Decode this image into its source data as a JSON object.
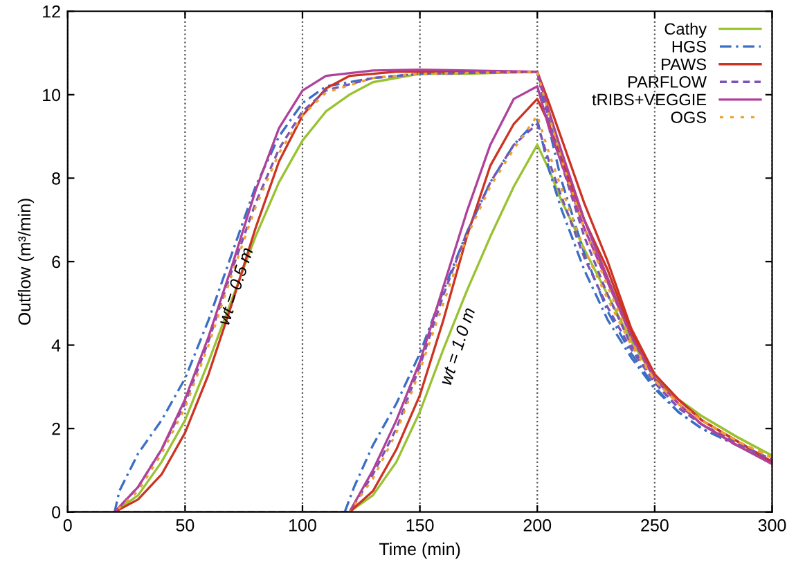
{
  "chart_data": {
    "type": "line",
    "xlabel": "Time (min)",
    "ylabel": "Outflow (m³/min)",
    "xlim": [
      0,
      300
    ],
    "ylim": [
      0,
      12
    ],
    "xticks": [
      0,
      50,
      100,
      150,
      200,
      250,
      300
    ],
    "yticks": [
      0,
      2,
      4,
      6,
      8,
      10,
      12
    ],
    "grid": "x",
    "legend": "top right",
    "marker": "none",
    "annotations": [
      "wt = 0.5 m",
      "wt = 1.0 m"
    ],
    "series": [
      {
        "name": "Cathy",
        "color": "#99c232",
        "line_style": "solid",
        "x": [
          0,
          20,
          30,
          40,
          50,
          60,
          70,
          80,
          90,
          100,
          110,
          120,
          130,
          150,
          170,
          200,
          205,
          210,
          220,
          230,
          240,
          250,
          260,
          270,
          285,
          300
        ],
        "values": [
          0,
          0,
          0.4,
          1.2,
          2.2,
          3.6,
          5.1,
          6.6,
          7.9,
          8.9,
          9.6,
          10.0,
          10.3,
          10.5,
          10.5,
          10.55,
          9.6,
          8.6,
          7.0,
          5.6,
          4.3,
          3.2,
          2.7,
          2.3,
          1.8,
          1.35
        ]
      },
      {
        "color": "#99c232",
        "line_style": "solid",
        "x": [
          0,
          120,
          130,
          140,
          150,
          160,
          170,
          180,
          190,
          200,
          205,
          210,
          220,
          230,
          240,
          250,
          260,
          270,
          285,
          300
        ],
        "values": [
          0,
          0,
          0.4,
          1.2,
          2.4,
          3.9,
          5.3,
          6.6,
          7.8,
          8.8,
          8.2,
          7.5,
          6.3,
          5.2,
          4.1,
          3.2,
          2.7,
          2.3,
          1.8,
          1.35
        ]
      },
      {
        "name": "HGS",
        "color": "#3a6fc4",
        "line_style": "dashdot",
        "x": [
          0,
          20,
          22,
          30,
          40,
          50,
          60,
          70,
          80,
          90,
          100,
          110,
          130,
          150,
          200,
          205,
          210,
          220,
          230,
          240,
          250,
          260,
          270,
          285,
          300
        ],
        "values": [
          0,
          0,
          0.5,
          1.4,
          2.2,
          3.2,
          4.6,
          6.2,
          7.8,
          9.0,
          9.8,
          10.2,
          10.4,
          10.5,
          10.55,
          9.2,
          8.0,
          6.2,
          4.8,
          3.8,
          3.0,
          2.4,
          2.0,
          1.6,
          1.2
        ]
      },
      {
        "color": "#3a6fc4",
        "line_style": "dashdot",
        "x": [
          0,
          118,
          122,
          130,
          140,
          150,
          160,
          170,
          180,
          190,
          200,
          205,
          210,
          220,
          230,
          240,
          250,
          260,
          270,
          285,
          300
        ],
        "values": [
          0,
          0,
          0.6,
          1.6,
          2.6,
          3.8,
          5.3,
          6.7,
          7.9,
          8.8,
          9.4,
          8.2,
          7.3,
          5.8,
          4.6,
          3.7,
          2.95,
          2.4,
          2.0,
          1.6,
          1.2
        ]
      },
      {
        "name": "PAWS",
        "color": "#cc3322",
        "line_style": "solid",
        "x": [
          0,
          20,
          30,
          40,
          50,
          60,
          70,
          80,
          90,
          100,
          110,
          120,
          140,
          200,
          205,
          210,
          220,
          230,
          240,
          250,
          260,
          270,
          285,
          300
        ],
        "values": [
          0,
          0,
          0.3,
          0.9,
          1.9,
          3.3,
          5.0,
          6.8,
          8.4,
          9.5,
          10.15,
          10.45,
          10.55,
          10.55,
          9.8,
          9.0,
          7.4,
          6.0,
          4.4,
          3.3,
          2.7,
          2.2,
          1.7,
          1.2
        ]
      },
      {
        "color": "#cc3322",
        "line_style": "solid",
        "x": [
          0,
          120,
          130,
          140,
          150,
          160,
          170,
          180,
          190,
          200,
          205,
          210,
          220,
          230,
          240,
          250,
          260,
          270,
          285,
          300
        ],
        "values": [
          0,
          0,
          0.5,
          1.5,
          2.8,
          4.6,
          6.6,
          8.3,
          9.3,
          9.9,
          9.3,
          8.5,
          7.0,
          5.8,
          4.3,
          3.3,
          2.7,
          2.2,
          1.7,
          1.2
        ]
      },
      {
        "name": "PARFLOW",
        "color": "#7b55b5",
        "line_style": "dashed",
        "x": [
          0,
          20,
          30,
          40,
          50,
          60,
          70,
          80,
          90,
          100,
          110,
          130,
          150,
          200,
          205,
          210,
          220,
          230,
          240,
          250,
          260,
          270,
          285,
          300
        ],
        "values": [
          0,
          0,
          0.6,
          1.5,
          2.6,
          4.1,
          5.8,
          7.4,
          8.7,
          9.6,
          10.1,
          10.4,
          10.5,
          10.55,
          9.4,
          8.4,
          6.6,
          5.2,
          4.0,
          3.1,
          2.5,
          2.1,
          1.65,
          1.25
        ]
      },
      {
        "color": "#7b55b5",
        "line_style": "dashed",
        "x": [
          0,
          120,
          130,
          140,
          150,
          160,
          170,
          180,
          190,
          200,
          205,
          210,
          220,
          230,
          240,
          250,
          260,
          270,
          285,
          300
        ],
        "values": [
          0,
          0,
          0.9,
          2.0,
          3.5,
          5.2,
          6.7,
          7.9,
          8.8,
          9.3,
          8.4,
          7.6,
          6.1,
          4.9,
          3.9,
          3.1,
          2.5,
          2.1,
          1.65,
          1.25
        ]
      },
      {
        "name": "tRIBS+VEGGIE",
        "color": "#b0419b",
        "line_style": "solid",
        "x": [
          0,
          20,
          30,
          40,
          50,
          60,
          70,
          80,
          90,
          100,
          110,
          130,
          150,
          200,
          205,
          210,
          220,
          230,
          240,
          250,
          260,
          270,
          285,
          300
        ],
        "values": [
          0,
          0,
          0.6,
          1.5,
          2.7,
          4.2,
          5.9,
          7.7,
          9.2,
          10.1,
          10.45,
          10.58,
          10.6,
          10.55,
          9.6,
          8.7,
          7.0,
          5.6,
          4.2,
          3.2,
          2.6,
          2.1,
          1.6,
          1.15
        ]
      },
      {
        "color": "#b0419b",
        "line_style": "solid",
        "x": [
          0,
          120,
          130,
          140,
          150,
          160,
          170,
          180,
          190,
          200,
          205,
          210,
          220,
          230,
          240,
          250,
          260,
          270,
          285,
          300
        ],
        "values": [
          0,
          0,
          1.0,
          2.2,
          3.6,
          5.4,
          7.2,
          8.8,
          9.9,
          10.2,
          9.2,
          8.4,
          6.8,
          5.5,
          4.2,
          3.2,
          2.6,
          2.1,
          1.6,
          1.15
        ]
      },
      {
        "name": "OGS",
        "color": "#f0a030",
        "line_style": "dotted",
        "x": [
          0,
          20,
          30,
          40,
          50,
          60,
          70,
          80,
          90,
          100,
          110,
          130,
          150,
          200,
          205,
          210,
          220,
          230,
          240,
          250,
          260,
          270,
          285,
          300
        ],
        "values": [
          0,
          0,
          0.5,
          1.4,
          2.5,
          4.0,
          5.7,
          7.3,
          8.6,
          9.5,
          10.05,
          10.4,
          10.5,
          10.55,
          9.5,
          8.5,
          6.8,
          5.4,
          4.1,
          3.15,
          2.6,
          2.2,
          1.7,
          1.3
        ]
      },
      {
        "color": "#f0a030",
        "line_style": "dotted",
        "x": [
          0,
          120,
          130,
          140,
          150,
          160,
          170,
          180,
          190,
          200,
          205,
          210,
          220,
          230,
          240,
          250,
          260,
          270,
          285,
          300
        ],
        "values": [
          0,
          0,
          0.8,
          1.9,
          3.4,
          5.0,
          6.6,
          7.8,
          8.7,
          9.5,
          8.6,
          7.8,
          6.3,
          5.1,
          4.0,
          3.15,
          2.6,
          2.2,
          1.7,
          1.3
        ]
      }
    ]
  }
}
